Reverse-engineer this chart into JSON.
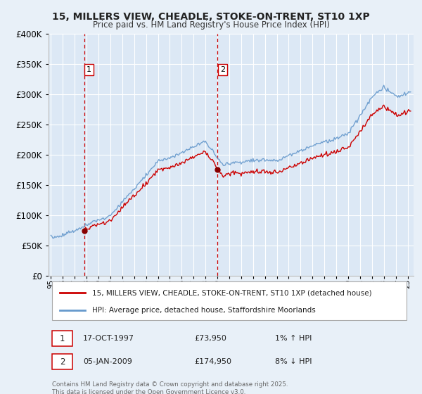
{
  "title_line1": "15, MILLERS VIEW, CHEADLE, STOKE-ON-TRENT, ST10 1XP",
  "title_line2": "Price paid vs. HM Land Registry's House Price Index (HPI)",
  "background_color": "#e8f0f8",
  "plot_bg_color": "#dce8f5",
  "grid_color": "#ffffff",
  "purchase1_date": 1997.79,
  "purchase1_price": 73950,
  "purchase1_label": "1",
  "purchase2_date": 2009.02,
  "purchase2_price": 174950,
  "purchase2_label": "2",
  "legend_line1": "15, MILLERS VIEW, CHEADLE, STOKE-ON-TRENT, ST10 1XP (detached house)",
  "legend_line2": "HPI: Average price, detached house, Staffordshire Moorlands",
  "note1_box": "1",
  "note1_date": "17-OCT-1997",
  "note1_price": "£73,950",
  "note1_hpi": "1% ↑ HPI",
  "note2_box": "2",
  "note2_date": "05-JAN-2009",
  "note2_price": "£174,950",
  "note2_hpi": "8% ↓ HPI",
  "copyright": "Contains HM Land Registry data © Crown copyright and database right 2025.\nThis data is licensed under the Open Government Licence v3.0.",
  "line_color_property": "#cc0000",
  "line_color_hpi": "#6699cc",
  "marker_color": "#880000",
  "vline_color": "#cc0000",
  "ylim_min": 0,
  "ylim_max": 400000,
  "xlim_min": 1994.8,
  "xlim_max": 2025.5
}
